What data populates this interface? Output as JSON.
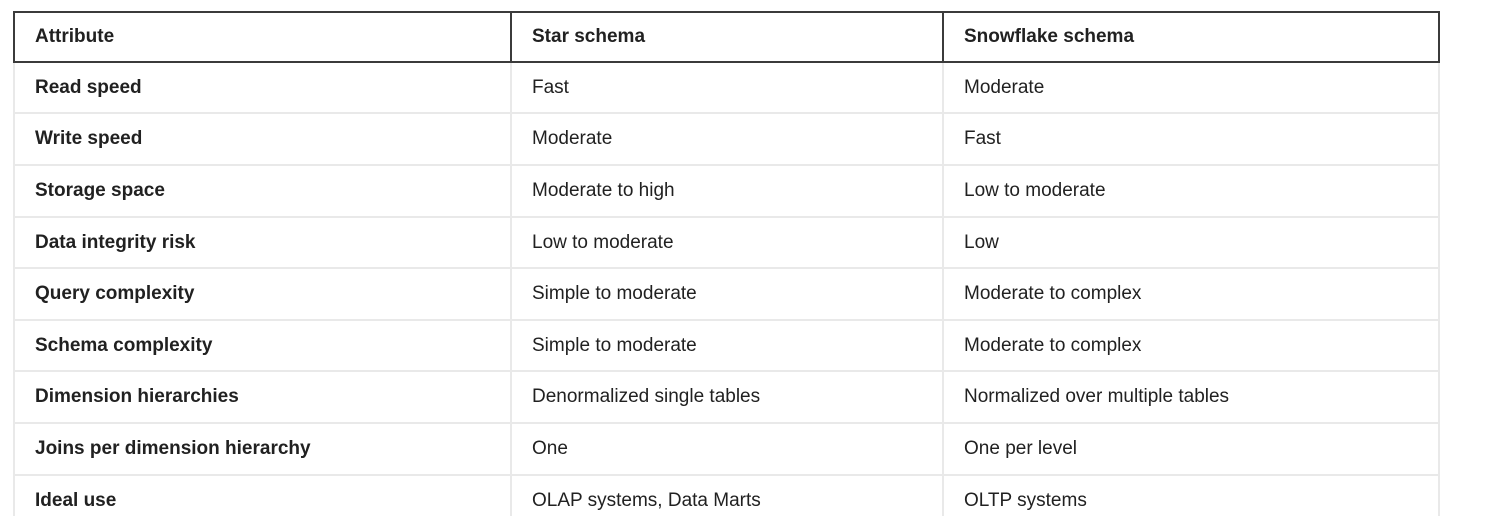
{
  "table": {
    "headers": [
      "Attribute",
      "Star schema",
      "Snowflake schema"
    ],
    "rows": [
      [
        "Read speed",
        "Fast",
        "Moderate"
      ],
      [
        "Write speed",
        "Moderate",
        "Fast"
      ],
      [
        "Storage space",
        "Moderate to high",
        "Low to moderate"
      ],
      [
        "Data integrity risk",
        "Low to moderate",
        "Low"
      ],
      [
        "Query complexity",
        "Simple to moderate",
        "Moderate to complex"
      ],
      [
        "Schema complexity",
        "Simple to moderate",
        "Moderate to complex"
      ],
      [
        "Dimension hierarchies",
        "Denormalized single tables",
        "Normalized over multiple tables"
      ],
      [
        "Joins per dimension hierarchy",
        "One",
        "One per level"
      ],
      [
        "Ideal use",
        "OLAP systems, Data Marts",
        "OLTP systems"
      ]
    ]
  },
  "colors": {
    "text": "#212121",
    "header_border": "#3b3b3b",
    "row_border": "#e9e9e9",
    "background": "#ffffff"
  }
}
